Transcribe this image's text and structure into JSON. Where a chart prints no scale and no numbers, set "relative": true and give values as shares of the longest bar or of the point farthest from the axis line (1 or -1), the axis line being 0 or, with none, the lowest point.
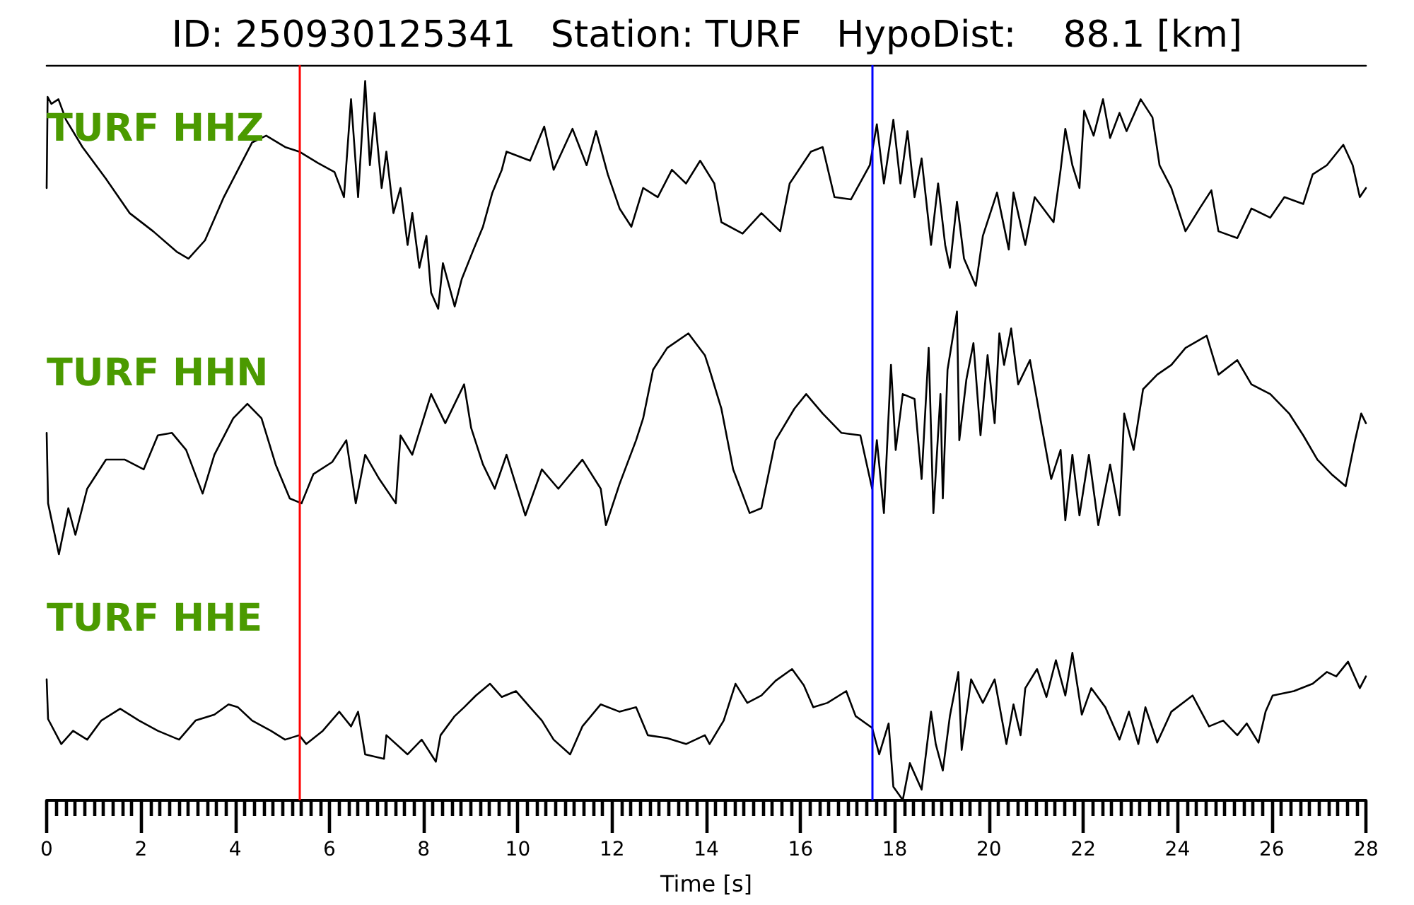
{
  "chart_data": [
    {
      "type": "line",
      "title": "ID: 250930125341   Station: TURF   HypoDist:    88.1 [km]",
      "relative": true,
      "xlim": [
        0,
        28
      ],
      "tick_labels": false,
      "series": [
        {
          "name": "TURF HHZ",
          "color": "#000000",
          "x": [
            0,
            0.02,
            0.1,
            0.25,
            0.41,
            0.76,
            1.26,
            1.76,
            2.26,
            2.76,
            3.01,
            3.36,
            3.76,
            4.06,
            4.36,
            4.66,
            5.06,
            5.36,
            5.76,
            6.11,
            6.31,
            6.46,
            6.61,
            6.76,
            6.86,
            6.96,
            7.11,
            7.21,
            7.36,
            7.51,
            7.66,
            7.76,
            7.91,
            8.06,
            8.16,
            8.31,
            8.41,
            8.66,
            8.81,
            9.06,
            9.26,
            9.46,
            9.66,
            9.76,
            10.26,
            10.56,
            10.76,
            11.16,
            11.46,
            11.66,
            11.91,
            12.16,
            12.41,
            12.66,
            12.97,
            13.27,
            13.57,
            13.87,
            14.17,
            14.32,
            14.77,
            15.17,
            15.57,
            15.77,
            16.22,
            16.47,
            16.72,
            17.07,
            17.47,
            17.62,
            17.77,
            17.97,
            18.12,
            18.27,
            18.42,
            18.57,
            18.77,
            18.92,
            19.07,
            19.17,
            19.32,
            19.47,
            19.72,
            19.87,
            20.17,
            20.42,
            20.52,
            20.77,
            20.97,
            21.37,
            21.52,
            21.62,
            21.77,
            21.92,
            22.02,
            22.22,
            22.42,
            22.57,
            22.77,
            22.92,
            23.22,
            23.47,
            23.62,
            23.87,
            24.17,
            24.47,
            24.72,
            24.87,
            25.27,
            25.57,
            25.97,
            26.27,
            26.67,
            26.87,
            27.17,
            27.52,
            27.72,
            27.87,
            28
          ],
          "values": [
            0.53,
            0.93,
            0.9,
            0.92,
            0.83,
            0.71,
            0.57,
            0.42,
            0.34,
            0.25,
            0.22,
            0.3,
            0.49,
            0.61,
            0.73,
            0.76,
            0.71,
            0.69,
            0.64,
            0.6,
            0.49,
            0.92,
            0.49,
            1.0,
            0.63,
            0.86,
            0.53,
            0.69,
            0.42,
            0.53,
            0.28,
            0.42,
            0.18,
            0.32,
            0.07,
            0.0,
            0.2,
            0.01,
            0.13,
            0.26,
            0.36,
            0.51,
            0.61,
            0.69,
            0.65,
            0.8,
            0.61,
            0.79,
            0.63,
            0.78,
            0.59,
            0.44,
            0.36,
            0.53,
            0.49,
            0.61,
            0.55,
            0.65,
            0.55,
            0.38,
            0.33,
            0.42,
            0.34,
            0.55,
            0.69,
            0.71,
            0.49,
            0.48,
            0.63,
            0.81,
            0.55,
            0.83,
            0.55,
            0.78,
            0.49,
            0.66,
            0.28,
            0.55,
            0.28,
            0.18,
            0.47,
            0.22,
            0.1,
            0.32,
            0.51,
            0.26,
            0.51,
            0.28,
            0.49,
            0.38,
            0.61,
            0.79,
            0.63,
            0.53,
            0.87,
            0.76,
            0.92,
            0.75,
            0.86,
            0.78,
            0.92,
            0.84,
            0.63,
            0.53,
            0.34,
            0.44,
            0.52,
            0.34,
            0.31,
            0.44,
            0.4,
            0.49,
            0.46,
            0.59,
            0.63,
            0.72,
            0.63,
            0.49,
            0.53
          ]
        }
      ],
      "ref_lines": [
        {
          "axis": "x",
          "value": 5.36,
          "color": "#ff0000"
        },
        {
          "axis": "x",
          "value": 17.52,
          "color": "#0000ff"
        }
      ]
    },
    {
      "type": "line",
      "relative": true,
      "xlim": [
        0,
        28
      ],
      "tick_labels": false,
      "series": [
        {
          "name": "TURF HHN",
          "color": "#000000",
          "x": [
            0,
            0.03,
            0.26,
            0.46,
            0.61,
            0.86,
            1.26,
            1.66,
            2.06,
            2.36,
            2.66,
            2.96,
            3.31,
            3.56,
            3.96,
            4.26,
            4.56,
            4.86,
            5.16,
            5.41,
            5.66,
            6.06,
            6.36,
            6.56,
            6.76,
            7.06,
            7.41,
            7.51,
            7.76,
            8.16,
            8.46,
            8.86,
            9.01,
            9.26,
            9.51,
            9.76,
            10.16,
            10.51,
            10.86,
            11.37,
            11.76,
            11.87,
            12.16,
            12.51,
            12.66,
            12.87,
            13.17,
            13.62,
            13.97,
            14.07,
            14.32,
            14.57,
            14.92,
            15.17,
            15.47,
            15.87,
            16.12,
            16.47,
            16.87,
            17.27,
            17.52,
            17.62,
            17.77,
            17.92,
            18.02,
            18.17,
            18.42,
            18.57,
            18.72,
            18.82,
            18.97,
            19.02,
            19.12,
            19.32,
            19.37,
            19.52,
            19.67,
            19.82,
            19.97,
            20.12,
            20.22,
            20.32,
            20.47,
            20.62,
            20.87,
            21.07,
            21.32,
            21.52,
            21.62,
            21.77,
            21.92,
            22.12,
            22.32,
            22.57,
            22.77,
            22.87,
            23.07,
            23.27,
            23.57,
            23.87,
            24.17,
            24.62,
            24.87,
            25.27,
            25.57,
            25.97,
            26.37,
            26.67,
            26.97,
            27.27,
            27.57,
            27.77,
            27.9,
            28
          ],
          "values": [
            0.5,
            0.21,
            0.0,
            0.19,
            0.08,
            0.27,
            0.39,
            0.39,
            0.35,
            0.49,
            0.5,
            0.43,
            0.25,
            0.41,
            0.56,
            0.62,
            0.56,
            0.37,
            0.23,
            0.21,
            0.33,
            0.38,
            0.47,
            0.21,
            0.41,
            0.31,
            0.21,
            0.49,
            0.41,
            0.66,
            0.54,
            0.7,
            0.52,
            0.37,
            0.27,
            0.41,
            0.16,
            0.35,
            0.27,
            0.39,
            0.27,
            0.12,
            0.29,
            0.47,
            0.56,
            0.76,
            0.85,
            0.91,
            0.82,
            0.76,
            0.6,
            0.35,
            0.17,
            0.19,
            0.47,
            0.6,
            0.66,
            0.58,
            0.5,
            0.49,
            0.27,
            0.47,
            0.17,
            0.78,
            0.43,
            0.66,
            0.64,
            0.31,
            0.85,
            0.17,
            0.66,
            0.23,
            0.76,
            1.0,
            0.47,
            0.72,
            0.87,
            0.49,
            0.82,
            0.54,
            0.91,
            0.78,
            0.93,
            0.7,
            0.8,
            0.58,
            0.31,
            0.43,
            0.14,
            0.41,
            0.16,
            0.41,
            0.12,
            0.37,
            0.16,
            0.58,
            0.43,
            0.68,
            0.74,
            0.78,
            0.85,
            0.9,
            0.74,
            0.8,
            0.7,
            0.66,
            0.58,
            0.49,
            0.39,
            0.33,
            0.28,
            0.47,
            0.58,
            0.54
          ]
        }
      ],
      "ref_lines": [
        {
          "axis": "x",
          "value": 5.36,
          "color": "#ff0000"
        },
        {
          "axis": "x",
          "value": 17.52,
          "color": "#0000ff"
        }
      ]
    },
    {
      "type": "line",
      "relative": true,
      "xlabel": "Time [s]",
      "xlim": [
        0,
        28
      ],
      "tick_labels": "x",
      "xticks": [
        0,
        {
          "value": 0.2,
          "label": null
        },
        {
          "value": 0.4,
          "label": null
        },
        {
          "value": 0.6,
          "label": null
        },
        {
          "value": 0.8,
          "label": null
        },
        {
          "value": 1,
          "label": null
        },
        {
          "value": 1.2,
          "label": null
        },
        {
          "value": 1.4,
          "label": null
        },
        {
          "value": 1.6,
          "label": null
        },
        {
          "value": 1.8,
          "label": null
        },
        2,
        {
          "value": 2.2,
          "label": null
        },
        {
          "value": 2.4,
          "label": null
        },
        {
          "value": 2.6,
          "label": null
        },
        {
          "value": 2.8,
          "label": null
        },
        {
          "value": 3,
          "label": null
        },
        {
          "value": 3.2,
          "label": null
        },
        {
          "value": 3.4,
          "label": null
        },
        {
          "value": 3.6,
          "label": null
        },
        {
          "value": 3.8,
          "label": null
        },
        4,
        {
          "value": 4.2,
          "label": null
        },
        {
          "value": 4.4,
          "label": null
        },
        {
          "value": 4.6,
          "label": null
        },
        {
          "value": 4.8,
          "label": null
        },
        {
          "value": 5,
          "label": null
        },
        {
          "value": 5.2,
          "label": null
        },
        {
          "value": 5.4,
          "label": null
        },
        {
          "value": 5.6,
          "label": null
        },
        {
          "value": 5.8,
          "label": null
        },
        6,
        {
          "value": 6.2,
          "label": null
        },
        {
          "value": 6.4,
          "label": null
        },
        {
          "value": 6.6,
          "label": null
        },
        {
          "value": 6.8,
          "label": null
        },
        {
          "value": 7,
          "label": null
        },
        {
          "value": 7.2,
          "label": null
        },
        {
          "value": 7.4,
          "label": null
        },
        {
          "value": 7.6,
          "label": null
        },
        {
          "value": 7.8,
          "label": null
        },
        8,
        {
          "value": 8.2,
          "label": null
        },
        {
          "value": 8.4,
          "label": null
        },
        {
          "value": 8.6,
          "label": null
        },
        {
          "value": 8.8,
          "label": null
        },
        {
          "value": 9,
          "label": null
        },
        {
          "value": 9.2,
          "label": null
        },
        {
          "value": 9.4,
          "label": null
        },
        {
          "value": 9.6,
          "label": null
        },
        {
          "value": 9.8,
          "label": null
        },
        10,
        {
          "value": 10.2,
          "label": null
        },
        {
          "value": 10.4,
          "label": null
        },
        {
          "value": 10.6,
          "label": null
        },
        {
          "value": 10.8,
          "label": null
        },
        {
          "value": 11,
          "label": null
        },
        {
          "value": 11.2,
          "label": null
        },
        {
          "value": 11.4,
          "label": null
        },
        {
          "value": 11.6,
          "label": null
        },
        {
          "value": 11.8,
          "label": null
        },
        12,
        {
          "value": 12.2,
          "label": null
        },
        {
          "value": 12.4,
          "label": null
        },
        {
          "value": 12.6,
          "label": null
        },
        {
          "value": 12.8,
          "label": null
        },
        {
          "value": 13,
          "label": null
        },
        {
          "value": 13.2,
          "label": null
        },
        {
          "value": 13.4,
          "label": null
        },
        {
          "value": 13.6,
          "label": null
        },
        {
          "value": 13.8,
          "label": null
        },
        14,
        {
          "value": 14.2,
          "label": null
        },
        {
          "value": 14.4,
          "label": null
        },
        {
          "value": 14.6,
          "label": null
        },
        {
          "value": 14.8,
          "label": null
        },
        {
          "value": 15,
          "label": null
        },
        {
          "value": 15.2,
          "label": null
        },
        {
          "value": 15.4,
          "label": null
        },
        {
          "value": 15.6,
          "label": null
        },
        {
          "value": 15.8,
          "label": null
        },
        16,
        {
          "value": 16.2,
          "label": null
        },
        {
          "value": 16.4,
          "label": null
        },
        {
          "value": 16.6,
          "label": null
        },
        {
          "value": 16.8,
          "label": null
        },
        {
          "value": 17,
          "label": null
        },
        {
          "value": 17.2,
          "label": null
        },
        {
          "value": 17.4,
          "label": null
        },
        {
          "value": 17.6,
          "label": null
        },
        {
          "value": 17.8,
          "label": null
        },
        18,
        {
          "value": 18.2,
          "label": null
        },
        {
          "value": 18.4,
          "label": null
        },
        {
          "value": 18.6,
          "label": null
        },
        {
          "value": 18.8,
          "label": null
        },
        {
          "value": 19,
          "label": null
        },
        {
          "value": 19.2,
          "label": null
        },
        {
          "value": 19.4,
          "label": null
        },
        {
          "value": 19.6,
          "label": null
        },
        {
          "value": 19.8,
          "label": null
        },
        20,
        {
          "value": 20.2,
          "label": null
        },
        {
          "value": 20.4,
          "label": null
        },
        {
          "value": 20.6,
          "label": null
        },
        {
          "value": 20.8,
          "label": null
        },
        {
          "value": 21,
          "label": null
        },
        {
          "value": 21.2,
          "label": null
        },
        {
          "value": 21.4,
          "label": null
        },
        {
          "value": 21.6,
          "label": null
        },
        {
          "value": 21.8,
          "label": null
        },
        22,
        {
          "value": 22.2,
          "label": null
        },
        {
          "value": 22.4,
          "label": null
        },
        {
          "value": 22.6,
          "label": null
        },
        {
          "value": 22.8,
          "label": null
        },
        {
          "value": 23,
          "label": null
        },
        {
          "value": 23.2,
          "label": null
        },
        {
          "value": 23.4,
          "label": null
        },
        {
          "value": 23.6,
          "label": null
        },
        {
          "value": 23.8,
          "label": null
        },
        24,
        {
          "value": 24.2,
          "label": null
        },
        {
          "value": 24.4,
          "label": null
        },
        {
          "value": 24.6,
          "label": null
        },
        {
          "value": 24.8,
          "label": null
        },
        {
          "value": 25,
          "label": null
        },
        {
          "value": 25.2,
          "label": null
        },
        {
          "value": 25.4,
          "label": null
        },
        {
          "value": 25.6,
          "label": null
        },
        {
          "value": 25.8,
          "label": null
        },
        26,
        {
          "value": 26.2,
          "label": null
        },
        {
          "value": 26.4,
          "label": null
        },
        {
          "value": 26.6,
          "label": null
        },
        {
          "value": 26.8,
          "label": null
        },
        {
          "value": 27,
          "label": null
        },
        {
          "value": 27.2,
          "label": null
        },
        {
          "value": 27.4,
          "label": null
        },
        {
          "value": 27.6,
          "label": null
        },
        {
          "value": 27.8,
          "label": null
        },
        28
      ],
      "series": [
        {
          "name": "TURF HHE",
          "color": "#000000",
          "x": [
            0,
            0.03,
            0.31,
            0.56,
            0.86,
            1.16,
            1.56,
            1.96,
            2.36,
            2.81,
            3.16,
            3.56,
            3.86,
            4.06,
            4.36,
            4.76,
            5.06,
            5.36,
            5.51,
            5.86,
            6.21,
            6.46,
            6.61,
            6.76,
            7.16,
            7.21,
            7.66,
            7.96,
            8.26,
            8.36,
            8.66,
            8.86,
            9.11,
            9.41,
            9.66,
            9.96,
            10.26,
            10.51,
            10.76,
            11.11,
            11.37,
            11.76,
            12.16,
            12.51,
            12.76,
            13.17,
            13.57,
            13.97,
            14.07,
            14.37,
            14.62,
            14.87,
            15.17,
            15.47,
            15.82,
            16.07,
            16.27,
            16.57,
            16.97,
            17.17,
            17.52,
            17.67,
            17.87,
            17.97,
            18.17,
            18.32,
            18.57,
            18.77,
            18.87,
            19.02,
            19.17,
            19.35,
            19.42,
            19.62,
            19.87,
            20.12,
            20.37,
            20.52,
            20.67,
            20.77,
            21.02,
            21.22,
            21.42,
            21.62,
            21.77,
            21.97,
            22.17,
            22.47,
            22.77,
            22.97,
            23.17,
            23.32,
            23.57,
            23.87,
            24.32,
            24.67,
            24.97,
            25.27,
            25.47,
            25.72,
            25.87,
            26.02,
            26.47,
            26.87,
            27.17,
            27.37,
            27.62,
            27.87,
            28
          ],
          "values": [
            0.82,
            0.55,
            0.38,
            0.47,
            0.41,
            0.54,
            0.62,
            0.54,
            0.47,
            0.41,
            0.54,
            0.58,
            0.65,
            0.63,
            0.54,
            0.47,
            0.41,
            0.44,
            0.38,
            0.47,
            0.6,
            0.5,
            0.6,
            0.31,
            0.28,
            0.44,
            0.31,
            0.41,
            0.26,
            0.44,
            0.57,
            0.63,
            0.71,
            0.79,
            0.7,
            0.74,
            0.63,
            0.54,
            0.41,
            0.31,
            0.5,
            0.65,
            0.6,
            0.63,
            0.44,
            0.42,
            0.38,
            0.44,
            0.38,
            0.54,
            0.79,
            0.66,
            0.71,
            0.81,
            0.89,
            0.78,
            0.63,
            0.66,
            0.74,
            0.57,
            0.49,
            0.31,
            0.52,
            0.09,
            0.0,
            0.25,
            0.07,
            0.6,
            0.38,
            0.2,
            0.57,
            0.87,
            0.34,
            0.82,
            0.66,
            0.82,
            0.38,
            0.65,
            0.44,
            0.76,
            0.89,
            0.7,
            0.95,
            0.71,
            1.0,
            0.58,
            0.76,
            0.63,
            0.41,
            0.6,
            0.38,
            0.63,
            0.39,
            0.6,
            0.71,
            0.5,
            0.54,
            0.44,
            0.52,
            0.39,
            0.6,
            0.71,
            0.74,
            0.79,
            0.87,
            0.84,
            0.94,
            0.76,
            0.84
          ]
        }
      ],
      "ref_lines": [
        {
          "axis": "x",
          "value": 5.36,
          "color": "#ff0000"
        },
        {
          "axis": "x",
          "value": 17.52,
          "color": "#0000ff"
        }
      ]
    }
  ]
}
